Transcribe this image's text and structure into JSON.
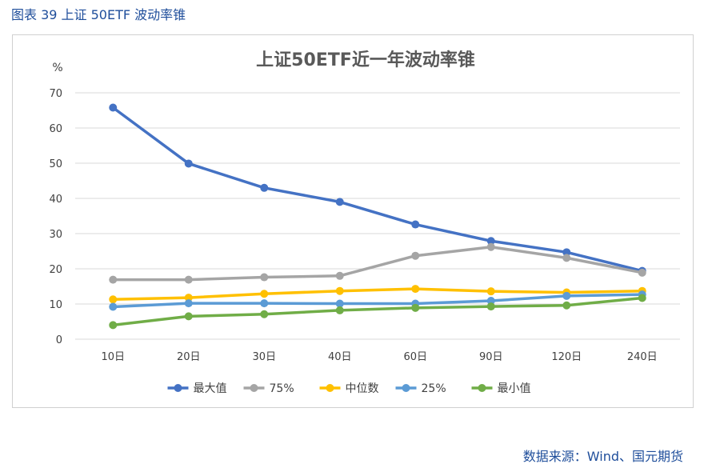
{
  "caption": "图表 39  上证 50ETF 波动率锥",
  "source": "数据来源：Wind、国元期货",
  "colors": {
    "caption_text": "#1f4e9b",
    "grid": "#d9d9d9",
    "axis_text": "#404040",
    "title_text": "#595959"
  },
  "chart_data": {
    "type": "line",
    "title": "上证50ETF近一年波动率锥",
    "unit_label": "%",
    "categories": [
      "10日",
      "20日",
      "30日",
      "40日",
      "60日",
      "90日",
      "120日",
      "240日"
    ],
    "ylim": [
      0,
      70
    ],
    "yticks": [
      0,
      10,
      20,
      30,
      40,
      50,
      60,
      70
    ],
    "grid": true,
    "legend_position": "bottom",
    "series": [
      {
        "name": "最大值",
        "color": "#4472c4",
        "values": [
          65.8,
          49.9,
          43.0,
          39.0,
          32.6,
          27.9,
          24.7,
          19.4
        ]
      },
      {
        "name": "75%",
        "color": "#a5a5a5",
        "values": [
          16.9,
          16.9,
          17.6,
          18.0,
          23.7,
          26.2,
          23.1,
          18.9
        ]
      },
      {
        "name": "中位数",
        "color": "#ffc000",
        "values": [
          11.3,
          11.8,
          12.9,
          13.7,
          14.3,
          13.6,
          13.3,
          13.7
        ]
      },
      {
        "name": "25%",
        "color": "#5b9bd5",
        "values": [
          9.2,
          10.2,
          10.2,
          10.1,
          10.1,
          10.9,
          12.3,
          12.7
        ]
      },
      {
        "name": "最小值",
        "color": "#70ad47",
        "values": [
          4.0,
          6.5,
          7.1,
          8.2,
          8.9,
          9.3,
          9.6,
          11.7
        ]
      }
    ]
  }
}
